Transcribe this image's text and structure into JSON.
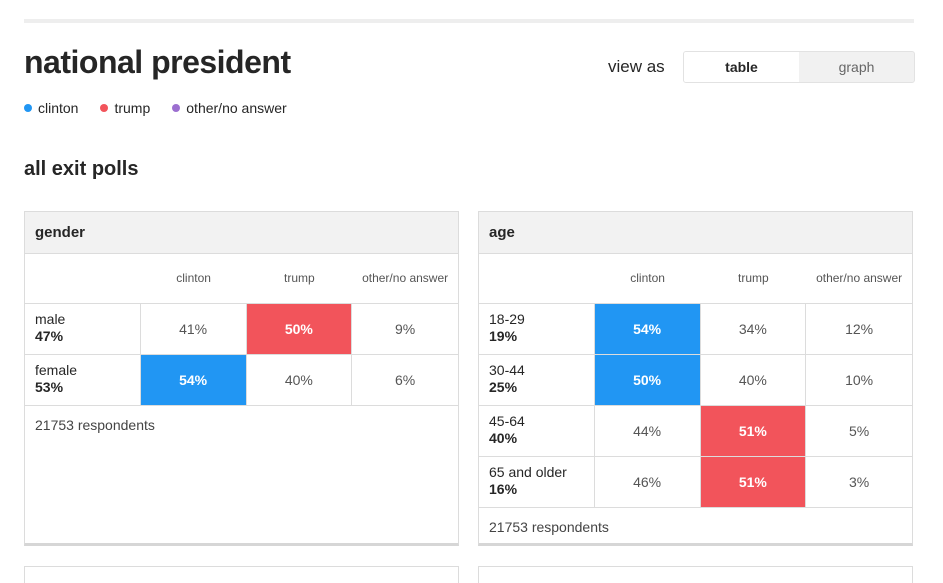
{
  "header": {
    "title": "national president"
  },
  "view_toggle": {
    "label": "view as",
    "options": [
      "table",
      "graph"
    ],
    "selected": "table"
  },
  "legend": [
    {
      "label": "clinton",
      "color": "#2196f3"
    },
    {
      "label": "trump",
      "color": "#f2545b"
    },
    {
      "label": "other/no answer",
      "color": "#9c6fd0"
    }
  ],
  "section_title": "all exit polls",
  "columns": [
    "clinton",
    "trump",
    "other/no answer"
  ],
  "colors": {
    "clinton": "#2196f3",
    "trump": "#f2545b"
  },
  "cards": [
    {
      "title": "gender",
      "rows": [
        {
          "label": "male",
          "share": "47%",
          "clinton": "41%",
          "trump": "50%",
          "other": "9%",
          "winner": "trump"
        },
        {
          "label": "female",
          "share": "53%",
          "clinton": "54%",
          "trump": "40%",
          "other": "6%",
          "winner": "clinton"
        }
      ],
      "respondents": "21753 respondents"
    },
    {
      "title": "age",
      "rows": [
        {
          "label": "18-29",
          "share": "19%",
          "clinton": "54%",
          "trump": "34%",
          "other": "12%",
          "winner": "clinton"
        },
        {
          "label": "30-44",
          "share": "25%",
          "clinton": "50%",
          "trump": "40%",
          "other": "10%",
          "winner": "clinton"
        },
        {
          "label": "45-64",
          "share": "40%",
          "clinton": "44%",
          "trump": "51%",
          "other": "5%",
          "winner": "trump"
        },
        {
          "label": "65 and older",
          "share": "16%",
          "clinton": "46%",
          "trump": "51%",
          "other": "3%",
          "winner": "trump"
        }
      ],
      "respondents": "21753 respondents"
    }
  ]
}
